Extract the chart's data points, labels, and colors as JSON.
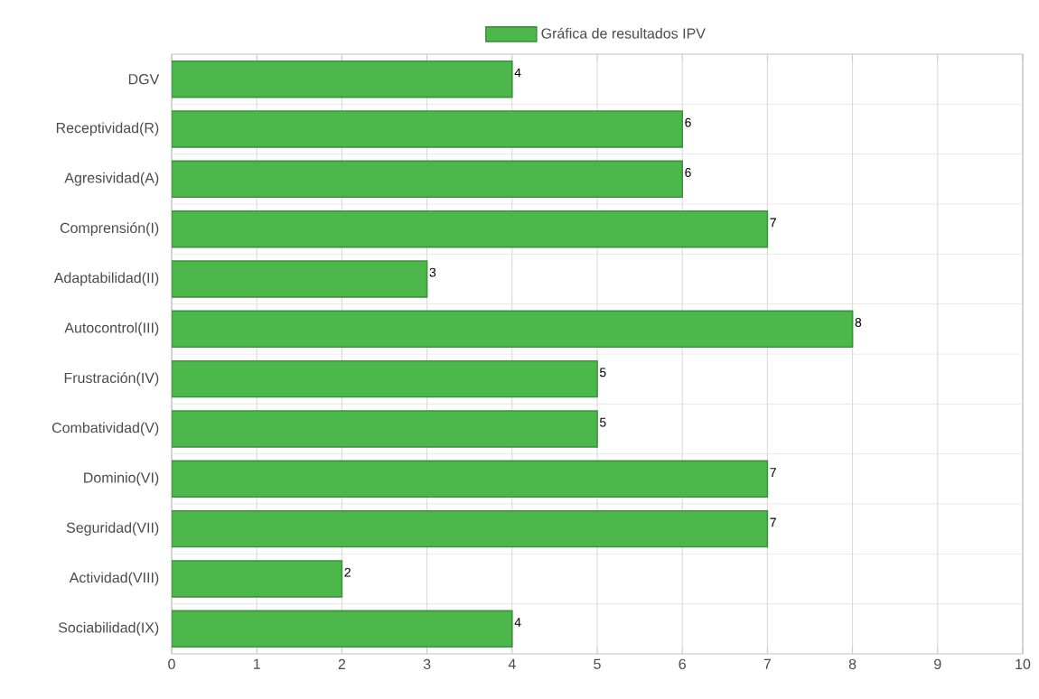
{
  "chart_data": {
    "type": "bar",
    "orientation": "horizontal",
    "categories": [
      "DGV",
      "Receptividad(R)",
      "Agresividad(A)",
      "Comprensión(I)",
      "Adaptabilidad(II)",
      "Autocontrol(III)",
      "Frustración(IV)",
      "Combatividad(V)",
      "Dominio(VI)",
      "Seguridad(VII)",
      "Actividad(VIII)",
      "Sociabilidad(IX)"
    ],
    "series": [
      {
        "name": "Gráfica de resultados IPV",
        "color": "#4cb84c",
        "values": [
          4,
          6,
          6,
          7,
          3,
          8,
          5,
          5,
          7,
          7,
          2,
          4
        ]
      }
    ],
    "xlim": [
      0,
      10
    ],
    "xticks": [
      0,
      1,
      2,
      3,
      4,
      5,
      6,
      7,
      8,
      9,
      10
    ],
    "grid": true,
    "legend": "top",
    "data_labels": true
  }
}
